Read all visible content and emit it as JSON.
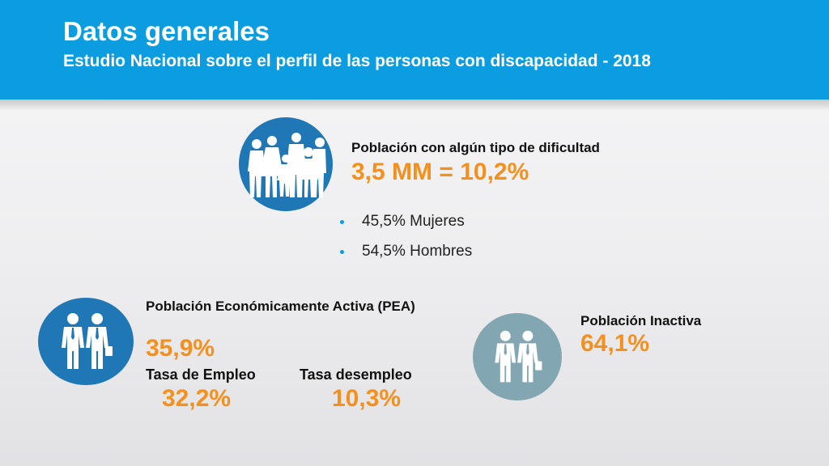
{
  "header": {
    "title": "Datos generales",
    "subtitle": "Estudio Nacional sobre el perfil de las personas con discapacidad - 2018"
  },
  "difficulty": {
    "label": "Población con algún tipo de dificultad",
    "value": "3,5 MM = 10,2%",
    "icon": "people-group-icon",
    "bullets": [
      "45,5% Mujeres",
      "54,5% Hombres"
    ]
  },
  "pea": {
    "label": "Población Económicamente Activa (PEA)",
    "value": "35,9%",
    "icon": "business-people-icon",
    "employment_label": "Tasa de Empleo",
    "employment_value": "32,2%",
    "unemployment_label": "Tasa desempleo",
    "unemployment_value": "10,3%"
  },
  "inactive": {
    "label": "Población Inactiva",
    "value": "64,1%",
    "icon": "business-people-icon"
  },
  "colors": {
    "header": "#0b9de0",
    "accent": "#f4901e",
    "circle_blue": "#1f77b5",
    "circle_gray": "#82a7b3"
  }
}
